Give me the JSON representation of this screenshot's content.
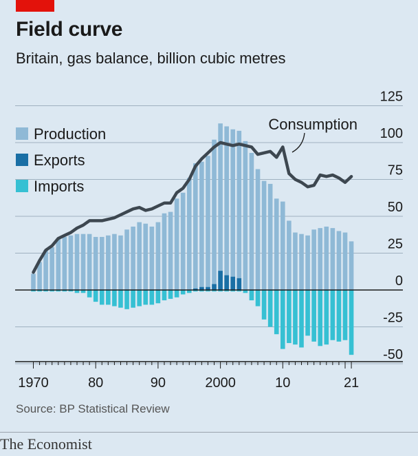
{
  "header": {
    "title": "Field curve",
    "subtitle": "Britain, gas balance, billion cubic metres"
  },
  "source": "Source: BP Statistical Review",
  "brand": "The Economist",
  "colors": {
    "background": "#dce8f2",
    "production": "#8fb9d6",
    "exports": "#1a6fa5",
    "imports": "#36c0d3",
    "consumption": "#3d4750",
    "grid": "#9fb1c0",
    "axis": "#1a1a1a",
    "brand_red": "#e3120b"
  },
  "chart_data": {
    "type": "bar",
    "x": [
      1970,
      1971,
      1972,
      1973,
      1974,
      1975,
      1976,
      1977,
      1978,
      1979,
      1980,
      1981,
      1982,
      1983,
      1984,
      1985,
      1986,
      1987,
      1988,
      1989,
      1990,
      1991,
      1992,
      1993,
      1994,
      1995,
      1996,
      1997,
      1998,
      1999,
      2000,
      2001,
      2002,
      2003,
      2004,
      2005,
      2006,
      2007,
      2008,
      2009,
      2010,
      2011,
      2012,
      2013,
      2014,
      2015,
      2016,
      2017,
      2018,
      2019,
      2020,
      2021
    ],
    "series": [
      {
        "name": "Production",
        "kind": "bar",
        "values": [
          11,
          19,
          27,
          29,
          35,
          36,
          37,
          38,
          38,
          38,
          36,
          36,
          37,
          38,
          37,
          41,
          43,
          46,
          45,
          43,
          46,
          52,
          53,
          62,
          66,
          76,
          86,
          87,
          91,
          102,
          113,
          111,
          109,
          108,
          101,
          93,
          82,
          74,
          72,
          62,
          60,
          47,
          39,
          38,
          37,
          41,
          42,
          43,
          42,
          40,
          39,
          33
        ]
      },
      {
        "name": "Exports",
        "kind": "bar",
        "values": [
          0,
          0,
          0,
          0,
          0,
          0,
          0,
          0,
          0,
          0,
          0,
          0,
          0,
          0,
          0,
          0,
          0,
          0,
          0,
          0,
          0,
          0,
          0,
          0,
          0,
          0,
          1,
          2,
          2,
          4,
          13,
          10,
          9,
          8,
          0,
          0,
          0,
          0,
          0,
          0,
          0,
          0,
          0,
          0,
          0,
          0,
          0,
          0,
          0,
          0,
          0,
          0
        ]
      },
      {
        "name": "Imports",
        "kind": "bar",
        "values": [
          -1,
          -1,
          -1,
          -1,
          -1,
          -1,
          -1,
          -2,
          -2,
          -5,
          -8,
          -10,
          -10,
          -11,
          -12,
          -13,
          -12,
          -11,
          -10,
          -10,
          -9,
          -7,
          -6,
          -5,
          -3,
          -2,
          -1,
          -1,
          -1,
          -1,
          -1,
          -1,
          -1,
          -1,
          -2,
          -7,
          -11,
          -20,
          -25,
          -30,
          -40,
          -36,
          -37,
          -39,
          -31,
          -35,
          -38,
          -37,
          -34,
          -35,
          -34,
          -44
        ]
      },
      {
        "name": "Consumption",
        "kind": "line",
        "values": [
          12,
          20,
          27,
          30,
          35,
          37,
          39,
          42,
          44,
          47,
          47,
          47,
          48,
          49,
          51,
          53,
          55,
          56,
          54,
          55,
          57,
          59,
          59,
          66,
          69,
          75,
          84,
          89,
          93,
          97,
          100,
          99,
          98,
          99,
          98,
          97,
          92,
          93,
          94,
          90,
          97,
          79,
          75,
          73,
          70,
          71,
          78,
          77,
          78,
          76,
          73,
          77
        ]
      }
    ],
    "annotations": [
      "Consumption"
    ],
    "ylim": [
      -50,
      125
    ],
    "yticks": [
      "125",
      "100",
      "75",
      "50",
      "25",
      "0",
      "-25",
      "-50"
    ],
    "xticks": [
      "1970",
      "80",
      "90",
      "2000",
      "10",
      "21"
    ],
    "xlabel": "",
    "ylabel": "",
    "grid": true,
    "legend_position": "top-left"
  }
}
